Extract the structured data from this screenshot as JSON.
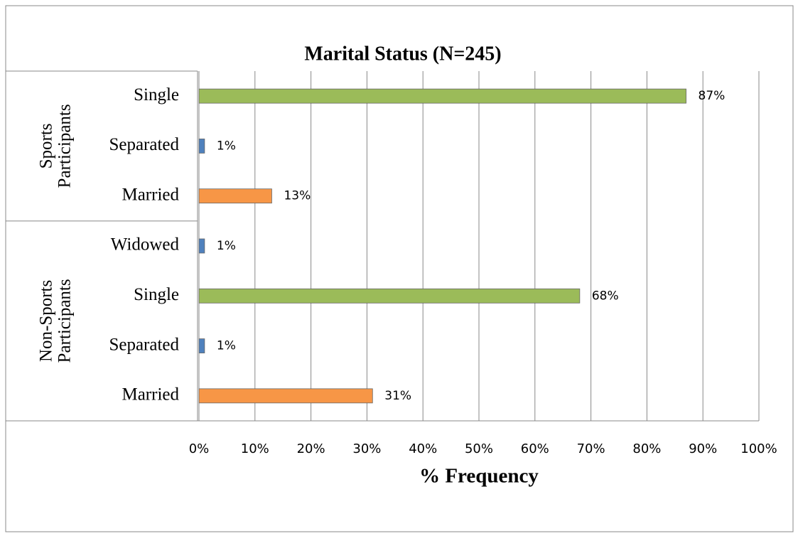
{
  "chart_data": {
    "type": "bar",
    "orientation": "horizontal",
    "title": "Marital Status (N=245)",
    "xlabel": "% Frequency",
    "xlim": [
      0,
      100
    ],
    "xticks": [
      {
        "value": 0,
        "label": "0%"
      },
      {
        "value": 10,
        "label": "10%"
      },
      {
        "value": 20,
        "label": "20%"
      },
      {
        "value": 30,
        "label": "30%"
      },
      {
        "value": 40,
        "label": "40%"
      },
      {
        "value": 50,
        "label": "50%"
      },
      {
        "value": 60,
        "label": "60%"
      },
      {
        "value": 70,
        "label": "70%"
      },
      {
        "value": 80,
        "label": "80%"
      },
      {
        "value": 90,
        "label": "90%"
      },
      {
        "value": 100,
        "label": "100%"
      }
    ],
    "grid": true,
    "groups": [
      {
        "name": [
          "Sports",
          "Participants"
        ],
        "categories": [
          "Single",
          "Separated",
          "Married"
        ],
        "values": [
          87,
          1,
          13
        ],
        "value_labels": [
          "87%",
          "1%",
          "13%"
        ],
        "colors": [
          "#9bbb59",
          "#4f81bd",
          "#f79646"
        ]
      },
      {
        "name": [
          "Non-Sports",
          "Participants"
        ],
        "categories": [
          "Widowed",
          "Single",
          "Separated",
          "Married"
        ],
        "values": [
          1,
          68,
          1,
          31
        ],
        "value_labels": [
          "1%",
          "68%",
          "1%",
          "31%"
        ],
        "colors": [
          "#4f81bd",
          "#9bbb59",
          "#4f81bd",
          "#f79646"
        ]
      }
    ]
  }
}
